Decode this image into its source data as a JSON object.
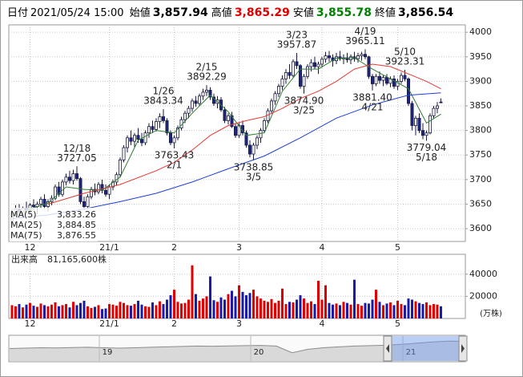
{
  "header": {
    "date_label": "日付",
    "date": "2021/05/24 15:00",
    "items": [
      {
        "label": "始値",
        "value": "3,857.94",
        "color": "#000000"
      },
      {
        "label": "高値",
        "value": "3,865.29",
        "color": "#e00000"
      },
      {
        "label": "安値",
        "value": "3,855.78",
        "color": "#008000"
      },
      {
        "label": "終値",
        "value": "3,856.54",
        "color": "#000000"
      }
    ]
  },
  "chart_data": [
    {
      "type": "candlestick",
      "categories": [
        null,
        null,
        null,
        null,
        null,
        "12",
        null,
        null,
        null,
        null,
        null,
        null,
        null,
        null,
        null,
        null,
        null,
        null,
        null,
        null,
        null,
        null,
        null,
        null,
        null,
        null,
        null,
        "21/1",
        null,
        null,
        null,
        null,
        null,
        null,
        null,
        null,
        null,
        null,
        null,
        null,
        null,
        null,
        null,
        null,
        null,
        "2",
        null,
        null,
        null,
        null,
        null,
        null,
        null,
        null,
        null,
        null,
        null,
        null,
        null,
        null,
        null,
        null,
        null,
        "3",
        null,
        null,
        null,
        null,
        null,
        null,
        null,
        null,
        null,
        null,
        null,
        null,
        null,
        null,
        null,
        null,
        null,
        null,
        null,
        null,
        null,
        null,
        "4",
        null,
        null,
        null,
        null,
        null,
        null,
        null,
        null,
        null,
        null,
        null,
        null,
        null,
        null,
        null,
        null,
        null,
        null,
        null,
        null,
        "5",
        null,
        null,
        null,
        null,
        null,
        null,
        null,
        null,
        null,
        null,
        null,
        null
      ],
      "ohlc": [
        [
          3615,
          3640,
          3605,
          3632
        ],
        [
          3632,
          3648,
          3625,
          3640
        ],
        [
          3640,
          3650,
          3628,
          3634
        ],
        [
          3634,
          3645,
          3622,
          3642
        ],
        [
          3642,
          3655,
          3630,
          3638
        ],
        [
          3638,
          3652,
          3628,
          3648
        ],
        [
          3648,
          3660,
          3638,
          3645
        ],
        [
          3645,
          3655,
          3630,
          3650
        ],
        [
          3650,
          3665,
          3642,
          3660
        ],
        [
          3660,
          3670,
          3640,
          3645
        ],
        [
          3645,
          3660,
          3635,
          3655
        ],
        [
          3655,
          3668,
          3648,
          3662
        ],
        [
          3662,
          3690,
          3658,
          3685
        ],
        [
          3685,
          3695,
          3665,
          3670
        ],
        [
          3670,
          3700,
          3665,
          3695
        ],
        [
          3695,
          3712,
          3688,
          3705
        ],
        [
          3705,
          3718,
          3692,
          3698
        ],
        [
          3698,
          3720,
          3690,
          3712
        ],
        [
          3712,
          3727.05,
          3698,
          3702
        ],
        [
          3702,
          3705,
          3650,
          3655
        ],
        [
          3655,
          3665,
          3638,
          3645
        ],
        [
          3645,
          3670,
          3640,
          3665
        ],
        [
          3665,
          3685,
          3660,
          3680
        ],
        [
          3680,
          3692,
          3668,
          3675
        ],
        [
          3675,
          3695,
          3670,
          3690
        ],
        [
          3690,
          3700,
          3672,
          3678
        ],
        [
          3678,
          3690,
          3665,
          3670
        ],
        [
          3670,
          3690,
          3660,
          3685
        ],
        [
          3685,
          3700,
          3678,
          3695
        ],
        [
          3695,
          3715,
          3688,
          3710
        ],
        [
          3710,
          3745,
          3705,
          3740
        ],
        [
          3740,
          3770,
          3735,
          3765
        ],
        [
          3765,
          3790,
          3755,
          3785
        ],
        [
          3785,
          3800,
          3770,
          3778
        ],
        [
          3778,
          3795,
          3765,
          3790
        ],
        [
          3790,
          3805,
          3775,
          3782
        ],
        [
          3782,
          3795,
          3768,
          3775
        ],
        [
          3775,
          3800,
          3770,
          3795
        ],
        [
          3795,
          3815,
          3785,
          3808
        ],
        [
          3808,
          3820,
          3795,
          3802
        ],
        [
          3802,
          3825,
          3798,
          3818
        ],
        [
          3818,
          3835,
          3805,
          3828
        ],
        [
          3828,
          3843.34,
          3815,
          3820
        ],
        [
          3820,
          3825,
          3790,
          3795
        ],
        [
          3795,
          3800,
          3770,
          3775
        ],
        [
          3775,
          3790,
          3763.43,
          3785
        ],
        [
          3785,
          3810,
          3780,
          3805
        ],
        [
          3805,
          3828,
          3800,
          3822
        ],
        [
          3822,
          3840,
          3815,
          3835
        ],
        [
          3835,
          3850,
          3825,
          3845
        ],
        [
          3845,
          3865,
          3838,
          3860
        ],
        [
          3860,
          3870,
          3848,
          3855
        ],
        [
          3855,
          3875,
          3850,
          3870
        ],
        [
          3870,
          3885,
          3862,
          3878
        ],
        [
          3878,
          3892.29,
          3870,
          3882
        ],
        [
          3882,
          3888,
          3862,
          3868
        ],
        [
          3868,
          3875,
          3850,
          3855
        ],
        [
          3855,
          3870,
          3845,
          3862
        ],
        [
          3862,
          3868,
          3838,
          3842
        ],
        [
          3842,
          3848,
          3815,
          3820
        ],
        [
          3820,
          3835,
          3812,
          3830
        ],
        [
          3830,
          3838,
          3805,
          3808
        ],
        [
          3808,
          3815,
          3785,
          3790
        ],
        [
          3790,
          3815,
          3785,
          3810
        ],
        [
          3810,
          3820,
          3790,
          3795
        ],
        [
          3795,
          3800,
          3765,
          3770
        ],
        [
          3770,
          3780,
          3745,
          3752
        ],
        [
          3752,
          3775,
          3738.85,
          3770
        ],
        [
          3770,
          3790,
          3762,
          3785
        ],
        [
          3785,
          3805,
          3775,
          3800
        ],
        [
          3800,
          3825,
          3795,
          3820
        ],
        [
          3820,
          3845,
          3815,
          3840
        ],
        [
          3840,
          3865,
          3835,
          3860
        ],
        [
          3860,
          3880,
          3852,
          3875
        ],
        [
          3875,
          3895,
          3868,
          3890
        ],
        [
          3890,
          3912,
          3882,
          3905
        ],
        [
          3905,
          3925,
          3895,
          3918
        ],
        [
          3918,
          3935,
          3905,
          3912
        ],
        [
          3912,
          3945,
          3908,
          3940
        ],
        [
          3940,
          3957.87,
          3925,
          3932
        ],
        [
          3932,
          3935,
          3885,
          3890
        ],
        [
          3890,
          3915,
          3874.9,
          3910
        ],
        [
          3910,
          3935,
          3905,
          3930
        ],
        [
          3930,
          3945,
          3920,
          3938
        ],
        [
          3938,
          3950,
          3925,
          3930
        ],
        [
          3930,
          3940,
          3915,
          3935
        ],
        [
          3935,
          3950,
          3928,
          3945
        ],
        [
          3945,
          3960,
          3938,
          3952
        ],
        [
          3952,
          3962,
          3940,
          3948
        ],
        [
          3948,
          3955,
          3930,
          3942
        ],
        [
          3942,
          3958,
          3935,
          3950
        ],
        [
          3950,
          3962,
          3942,
          3946
        ],
        [
          3946,
          3955,
          3935,
          3948
        ],
        [
          3948,
          3958,
          3938,
          3944
        ],
        [
          3944,
          3955,
          3935,
          3950
        ],
        [
          3950,
          3960,
          3940,
          3946
        ],
        [
          3946,
          3958,
          3938,
          3952
        ],
        [
          3952,
          3960,
          3942,
          3955
        ],
        [
          3955,
          3965.11,
          3945,
          3950
        ],
        [
          3950,
          3952,
          3905,
          3910
        ],
        [
          3910,
          3915,
          3881.4,
          3895
        ],
        [
          3895,
          3915,
          3890,
          3910
        ],
        [
          3910,
          3920,
          3895,
          3902
        ],
        [
          3902,
          3912,
          3890,
          3908
        ],
        [
          3908,
          3915,
          3892,
          3896
        ],
        [
          3896,
          3910,
          3888,
          3905
        ],
        [
          3905,
          3912,
          3885,
          3890
        ],
        [
          3890,
          3905,
          3882,
          3900
        ],
        [
          3900,
          3918,
          3895,
          3912
        ],
        [
          3912,
          3923.31,
          3900,
          3905
        ],
        [
          3905,
          3908,
          3850,
          3855
        ],
        [
          3855,
          3860,
          3800,
          3810
        ],
        [
          3810,
          3830,
          3790,
          3825
        ],
        [
          3825,
          3835,
          3795,
          3800
        ],
        [
          3800,
          3815,
          3782,
          3790
        ],
        [
          3790,
          3800,
          3779.04,
          3795
        ],
        [
          3795,
          3835,
          3792,
          3830
        ],
        [
          3830,
          3850,
          3825,
          3845
        ],
        [
          3845,
          3858,
          3835,
          3850
        ],
        [
          3857.94,
          3865.29,
          3855.78,
          3856.54
        ]
      ],
      "up_color": "#ffffff",
      "down_color": "#1a2585",
      "line_color": "#1a1a40",
      "ylim": [
        3574,
        4015
      ],
      "yticks": [
        3600,
        3650,
        3700,
        3750,
        3800,
        3850,
        3900,
        3950,
        4000
      ],
      "grid": true,
      "legend": "bottom-left",
      "series": [
        {
          "name": "MA(5)",
          "color": "#2e7d32",
          "label": "3,833.26",
          "x": [
            0,
            5,
            10,
            15,
            20,
            25,
            30,
            35,
            40,
            45,
            50,
            55,
            60,
            65,
            70,
            75,
            80,
            85,
            90,
            95,
            100,
            105,
            110,
            115,
            119
          ],
          "values": [
            3625,
            3640,
            3652,
            3685,
            3680,
            3678,
            3705,
            3780,
            3800,
            3795,
            3835,
            3872,
            3838,
            3790,
            3795,
            3880,
            3925,
            3925,
            3947,
            3948,
            3925,
            3905,
            3885,
            3815,
            3833.26
          ]
        },
        {
          "name": "MA(25)",
          "color": "#e53935",
          "label": "3,884.85",
          "x": [
            10,
            20,
            30,
            40,
            45,
            50,
            55,
            60,
            65,
            70,
            75,
            80,
            85,
            90,
            95,
            100,
            105,
            110,
            115,
            119
          ],
          "values": [
            3650,
            3672,
            3690,
            3718,
            3735,
            3760,
            3790,
            3810,
            3820,
            3828,
            3845,
            3865,
            3880,
            3900,
            3925,
            3935,
            3930,
            3915,
            3900,
            3884.85
          ]
        },
        {
          "name": "MA(75)",
          "color": "#1e3fd8",
          "label": "3,876.55",
          "x": [
            0,
            10,
            20,
            30,
            40,
            50,
            60,
            70,
            80,
            90,
            100,
            110,
            119
          ],
          "values": [
            3620,
            3628,
            3640,
            3655,
            3672,
            3695,
            3722,
            3748,
            3785,
            3825,
            3852,
            3872,
            3876.55
          ]
        }
      ],
      "annotations": [
        {
          "date": "12/18",
          "value": 3727.05,
          "at": "high"
        },
        {
          "date": "1/26",
          "value": 3843.34,
          "at": "high"
        },
        {
          "date": "2/1",
          "value": 3763.43,
          "at": "low"
        },
        {
          "date": "2/15",
          "value": 3892.29,
          "at": "high"
        },
        {
          "date": "3/5",
          "value": 3738.85,
          "at": "low"
        },
        {
          "date": "3/23",
          "value": 3957.87,
          "at": "high"
        },
        {
          "date": "3/25",
          "value": 3874.9,
          "value_label": "3874.90",
          "at": "low"
        },
        {
          "date": "4/19",
          "value": 3965.11,
          "at": "high"
        },
        {
          "date": "4/21",
          "value": 3881.4,
          "value_label": "3881.40",
          "at": "low"
        },
        {
          "date": "5/10",
          "value": 3923.31,
          "at": "high"
        },
        {
          "date": "5/18",
          "value": 3779.04,
          "at": "low"
        }
      ]
    },
    {
      "type": "bar",
      "title": "出来高",
      "subtitle": "81,165,600株",
      "unit": "(万株)",
      "up_color": "#e00000",
      "down_color": "#1a1aa8",
      "values": [
        12000,
        11000,
        13000,
        10000,
        12500,
        14000,
        11500,
        10500,
        13500,
        12000,
        11000,
        12500,
        14500,
        11000,
        12000,
        13000,
        10000,
        15000,
        12000,
        14000,
        16000,
        11000,
        9500,
        10500,
        12000,
        8500,
        9000,
        13000,
        12500,
        11500,
        15000,
        14000,
        12000,
        11500,
        13000,
        16000,
        12500,
        11000,
        10500,
        14500,
        12000,
        15500,
        13000,
        17000,
        21000,
        26000,
        15000,
        13500,
        14000,
        17000,
        48000,
        22000,
        16000,
        18000,
        20000,
        38000,
        16500,
        15000,
        19000,
        17000,
        22000,
        25000,
        20000,
        30000,
        24000,
        21000,
        23000,
        26000,
        20000,
        18000,
        16000,
        15000,
        17500,
        14000,
        16000,
        27000,
        13000,
        15000,
        14500,
        17000,
        21000,
        18000,
        14000,
        15500,
        13000,
        34000,
        17000,
        30000,
        14000,
        12500,
        13500,
        12000,
        15000,
        14000,
        12500,
        35000,
        13000,
        11500,
        14000,
        13500,
        17000,
        26000,
        15000,
        12000,
        13500,
        14500,
        12000,
        16000,
        13000,
        12000,
        18000,
        17000,
        15500,
        14000,
        13000,
        14500,
        12000,
        13000,
        12500,
        11000
      ],
      "ylim": [
        0,
        58000
      ],
      "yticks": [
        20000,
        40000
      ],
      "grid": true
    },
    {
      "type": "area",
      "color": "#8c8c8c",
      "ylim": [
        1500,
        4500
      ],
      "x_labels": [
        "19",
        "20",
        "21"
      ],
      "values": [
        3000,
        3050,
        3100,
        3080,
        3120,
        3150,
        3100,
        3050,
        3100,
        3150,
        3200,
        3250,
        3300,
        3280,
        3320,
        3350,
        3380,
        3300,
        2500,
        2900,
        3100,
        3200,
        3300,
        3350,
        3400,
        3500,
        3650,
        3800,
        3900,
        3870
      ]
    }
  ]
}
